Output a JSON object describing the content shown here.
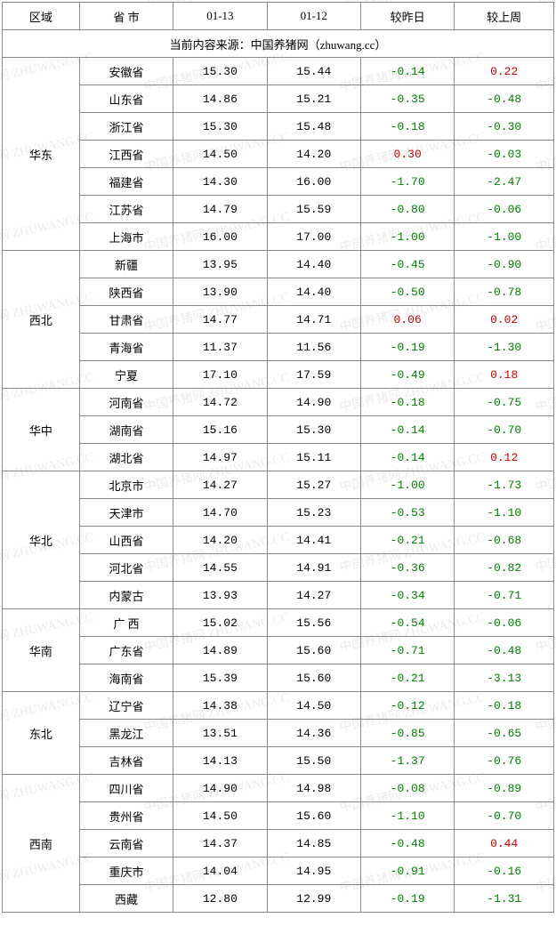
{
  "columns": {
    "region": "区域",
    "province": "省 市",
    "d1": "01-13",
    "d2": "01-12",
    "vsYesterday": "较昨日",
    "vsLastWeek": "较上周"
  },
  "source_text": "当前内容来源：中国养猪网（zhuwang.cc）",
  "watermark": "中国养猪网 ZHUWANG.CC",
  "col_widths": [
    "14%",
    "17%",
    "17%",
    "17%",
    "17%",
    "18%"
  ],
  "neg_color": "#008000",
  "pos_color": "#cc0000",
  "regions": [
    {
      "name": "华东",
      "rows": [
        {
          "province": "安徽省",
          "d1": "15.30",
          "d2": "15.44",
          "vy": "-0.14",
          "vw": "0.22"
        },
        {
          "province": "山东省",
          "d1": "14.86",
          "d2": "15.21",
          "vy": "-0.35",
          "vw": "-0.48"
        },
        {
          "province": "浙江省",
          "d1": "15.30",
          "d2": "15.48",
          "vy": "-0.18",
          "vw": "-0.30"
        },
        {
          "province": "江西省",
          "d1": "14.50",
          "d2": "14.20",
          "vy": "0.30",
          "vw": "-0.03"
        },
        {
          "province": "福建省",
          "d1": "14.30",
          "d2": "16.00",
          "vy": "-1.70",
          "vw": "-2.47"
        },
        {
          "province": "江苏省",
          "d1": "14.79",
          "d2": "15.59",
          "vy": "-0.80",
          "vw": "-0.06"
        },
        {
          "province": "上海市",
          "d1": "16.00",
          "d2": "17.00",
          "vy": "-1.00",
          "vw": "-1.00"
        }
      ]
    },
    {
      "name": "西北",
      "rows": [
        {
          "province": "新疆",
          "d1": "13.95",
          "d2": "14.40",
          "vy": "-0.45",
          "vw": "-0.90"
        },
        {
          "province": "陕西省",
          "d1": "13.90",
          "d2": "14.40",
          "vy": "-0.50",
          "vw": "-0.78"
        },
        {
          "province": "甘肃省",
          "d1": "14.77",
          "d2": "14.71",
          "vy": "0.06",
          "vw": "0.02"
        },
        {
          "province": "青海省",
          "d1": "11.37",
          "d2": "11.56",
          "vy": "-0.19",
          "vw": "-1.30"
        },
        {
          "province": "宁夏",
          "d1": "17.10",
          "d2": "17.59",
          "vy": "-0.49",
          "vw": "0.18"
        }
      ]
    },
    {
      "name": "华中",
      "rows": [
        {
          "province": "河南省",
          "d1": "14.72",
          "d2": "14.90",
          "vy": "-0.18",
          "vw": "-0.75"
        },
        {
          "province": "湖南省",
          "d1": "15.16",
          "d2": "15.30",
          "vy": "-0.14",
          "vw": "-0.70"
        },
        {
          "province": "湖北省",
          "d1": "14.97",
          "d2": "15.11",
          "vy": "-0.14",
          "vw": "0.12"
        }
      ]
    },
    {
      "name": "华北",
      "rows": [
        {
          "province": "北京市",
          "d1": "14.27",
          "d2": "15.27",
          "vy": "-1.00",
          "vw": "-1.73"
        },
        {
          "province": "天津市",
          "d1": "14.70",
          "d2": "15.23",
          "vy": "-0.53",
          "vw": "-1.10"
        },
        {
          "province": "山西省",
          "d1": "14.20",
          "d2": "14.41",
          "vy": "-0.21",
          "vw": "-0.68"
        },
        {
          "province": "河北省",
          "d1": "14.55",
          "d2": "14.91",
          "vy": "-0.36",
          "vw": "-0.82"
        },
        {
          "province": "内蒙古",
          "d1": "13.93",
          "d2": "14.27",
          "vy": "-0.34",
          "vw": "-0.71"
        }
      ]
    },
    {
      "name": "华南",
      "rows": [
        {
          "province": "广 西",
          "d1": "15.02",
          "d2": "15.56",
          "vy": "-0.54",
          "vw": "-0.06"
        },
        {
          "province": "广东省",
          "d1": "14.89",
          "d2": "15.60",
          "vy": "-0.71",
          "vw": "-0.48"
        },
        {
          "province": "海南省",
          "d1": "15.39",
          "d2": "15.60",
          "vy": "-0.21",
          "vw": "-3.13"
        }
      ]
    },
    {
      "name": "东北",
      "rows": [
        {
          "province": "辽宁省",
          "d1": "14.38",
          "d2": "14.50",
          "vy": "-0.12",
          "vw": "-0.18"
        },
        {
          "province": "黑龙江",
          "d1": "13.51",
          "d2": "14.36",
          "vy": "-0.85",
          "vw": "-0.65"
        },
        {
          "province": "吉林省",
          "d1": "14.13",
          "d2": "15.50",
          "vy": "-1.37",
          "vw": "-0.76"
        }
      ]
    },
    {
      "name": "西南",
      "rows": [
        {
          "province": "四川省",
          "d1": "14.90",
          "d2": "14.98",
          "vy": "-0.08",
          "vw": "-0.89"
        },
        {
          "province": "贵州省",
          "d1": "14.50",
          "d2": "15.60",
          "vy": "-1.10",
          "vw": "-0.70"
        },
        {
          "province": "云南省",
          "d1": "14.37",
          "d2": "14.85",
          "vy": "-0.48",
          "vw": "0.44"
        },
        {
          "province": "重庆市",
          "d1": "14.04",
          "d2": "14.95",
          "vy": "-0.91",
          "vw": "-0.16"
        },
        {
          "province": "西藏",
          "d1": "12.80",
          "d2": "12.99",
          "vy": "-0.19",
          "vw": "-1.31"
        }
      ]
    }
  ]
}
